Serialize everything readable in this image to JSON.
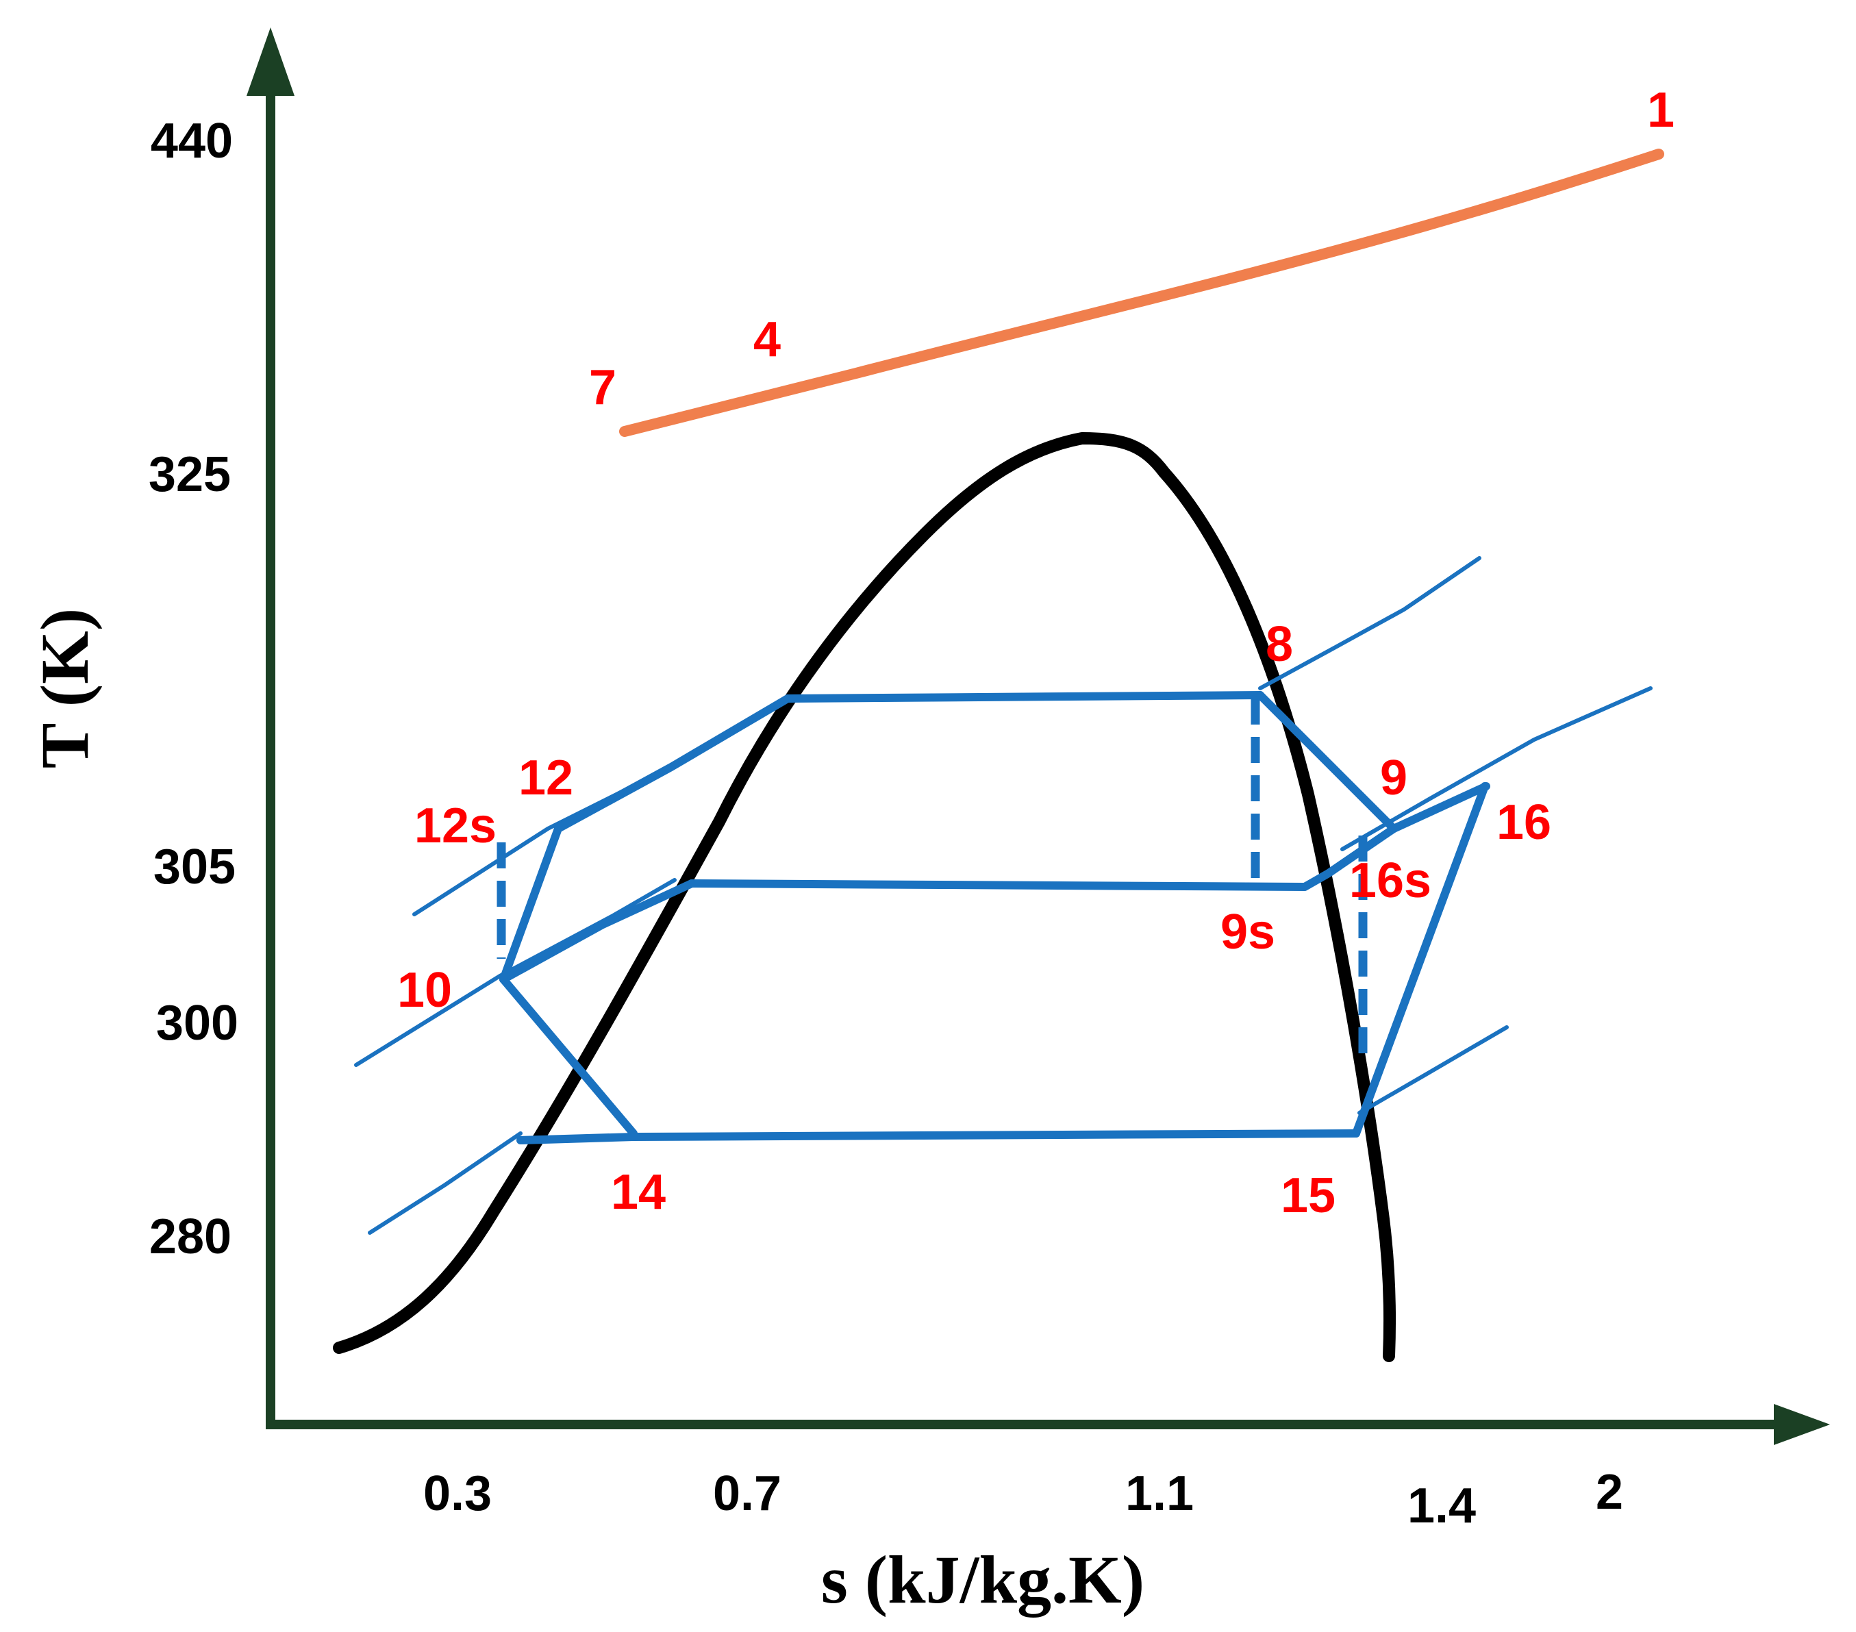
{
  "axes": {
    "y_title": "T (K)",
    "x_title": "s (kJ/kg.K)",
    "y_ticks": [
      "440",
      "325",
      "305",
      "300",
      "280"
    ],
    "x_ticks": [
      "0.3",
      "0.7",
      "1.1",
      "1.4",
      "2"
    ]
  },
  "points": {
    "p1": "1",
    "p4": "4",
    "p7": "7",
    "p8": "8",
    "p9": "9",
    "p9s": "9s",
    "p10": "10",
    "p12": "12",
    "p12s": "12s",
    "p14": "14",
    "p15": "15",
    "p16": "16",
    "p16s": "16s"
  },
  "colors": {
    "axis": "#1b4024",
    "dome": "#000000",
    "hot_stream": "#f07f4d",
    "cycle": "#1a72c0",
    "point_label": "#ff0000"
  }
}
